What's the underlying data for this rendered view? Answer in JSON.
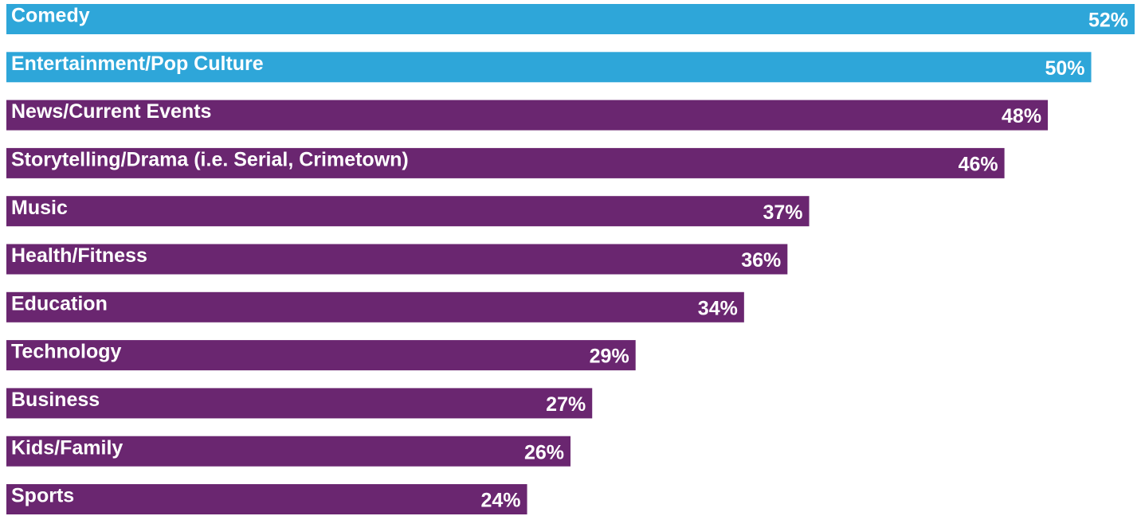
{
  "chart_data": {
    "type": "hbar",
    "categories": [
      "Comedy",
      "Entertainment/Pop Culture",
      "News/Current Events",
      "Storytelling/Drama (i.e. Serial, Crimetown)",
      "Music",
      "Health/Fitness",
      "Education",
      "Technology",
      "Business",
      "Kids/Family",
      "Sports"
    ],
    "values": [
      52,
      50,
      48,
      46,
      37,
      36,
      34,
      29,
      27,
      26,
      24
    ],
    "value_labels": [
      "52%",
      "50%",
      "48%",
      "46%",
      "37%",
      "36%",
      "34%",
      "29%",
      "27%",
      "26%",
      "24%"
    ],
    "colors": [
      "#2ea6d9",
      "#2ea6d9",
      "#6a2670",
      "#6a2670",
      "#6a2670",
      "#6a2670",
      "#6a2670",
      "#6a2670",
      "#6a2670",
      "#6a2670",
      "#6a2670"
    ],
    "xlim": [
      0,
      52
    ]
  }
}
